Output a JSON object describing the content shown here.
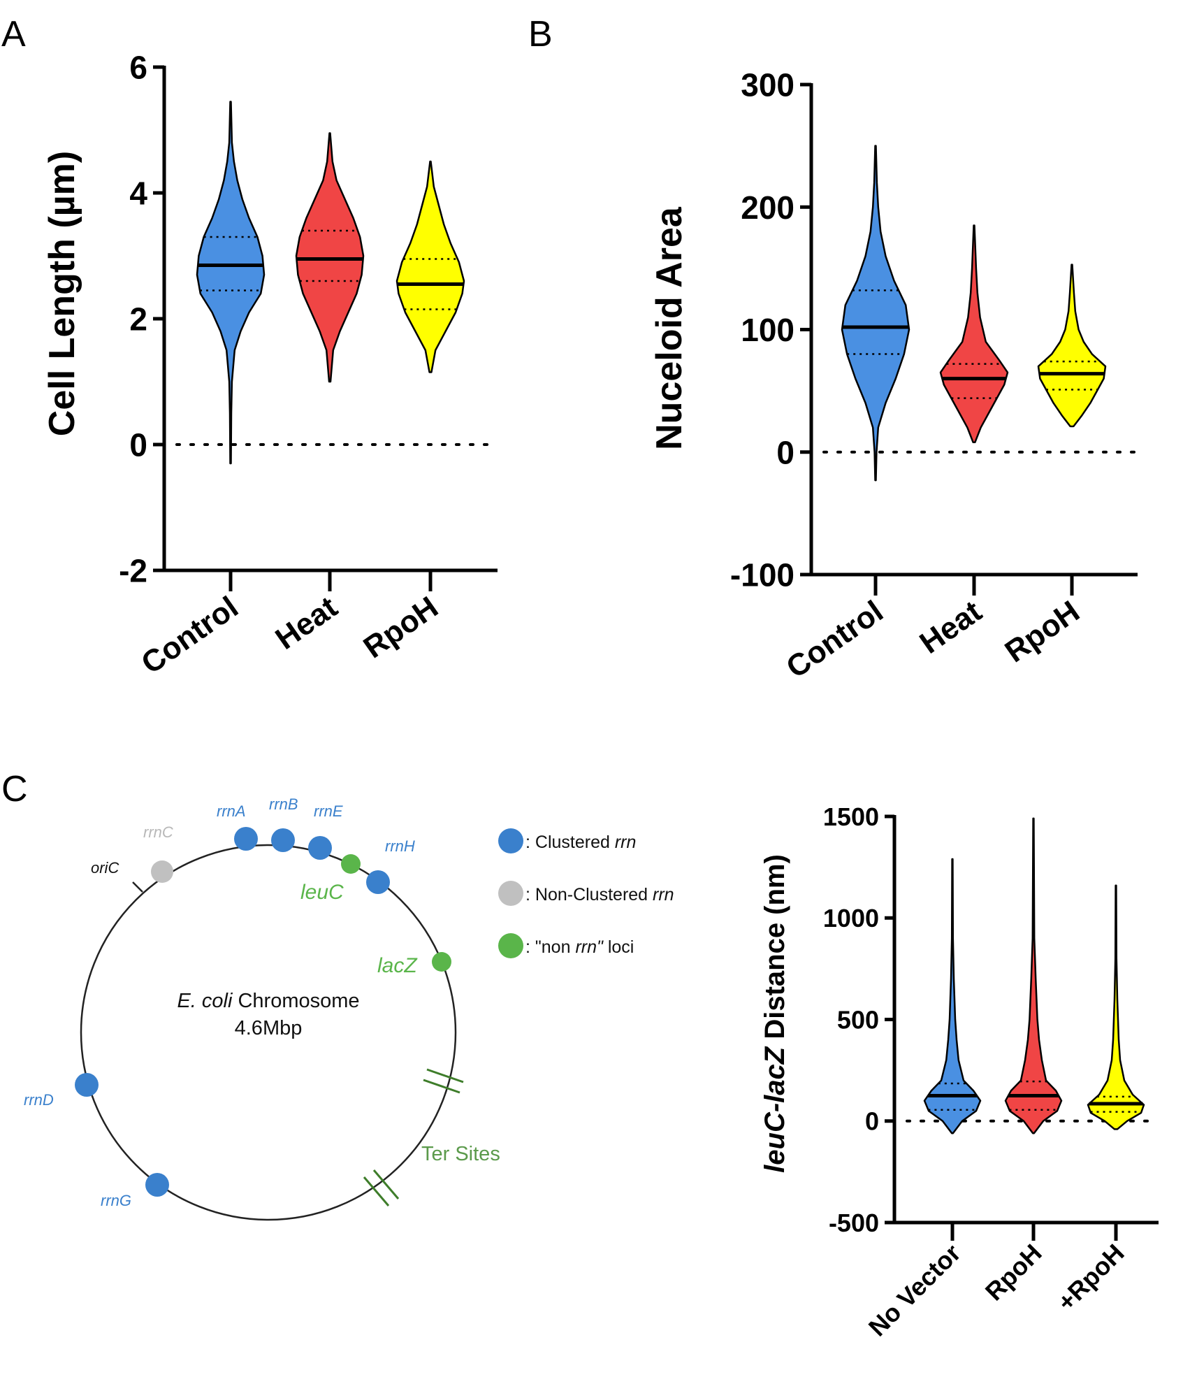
{
  "panels": {
    "a": "A",
    "b": "B",
    "c": "C"
  },
  "chart_data": [
    {
      "id": "panel-a",
      "type": "violin",
      "title": "",
      "ylabel": "Cell  Length (µm)",
      "xlabel": "",
      "ylim": [
        -2,
        6
      ],
      "yticks": [
        -2,
        0,
        2,
        4,
        6
      ],
      "reference_line": 0,
      "categories": [
        "Control",
        "Heat",
        "RpoH"
      ],
      "colors": [
        "#4a90e2",
        "#f04545",
        "#ffff00"
      ],
      "series": [
        {
          "name": "Control",
          "median": 2.85,
          "q1": 2.45,
          "q3": 3.3,
          "min": -0.3,
          "max": 5.45,
          "profile": [
            [
              -0.3,
              0.01
            ],
            [
              0.5,
              0.02
            ],
            [
              1.0,
              0.04
            ],
            [
              1.5,
              0.12
            ],
            [
              1.8,
              0.3
            ],
            [
              2.1,
              0.55
            ],
            [
              2.4,
              0.9
            ],
            [
              2.7,
              1.0
            ],
            [
              3.0,
              0.95
            ],
            [
              3.3,
              0.8
            ],
            [
              3.6,
              0.55
            ],
            [
              3.9,
              0.35
            ],
            [
              4.2,
              0.2
            ],
            [
              4.5,
              0.1
            ],
            [
              4.8,
              0.04
            ],
            [
              5.45,
              0.01
            ]
          ]
        },
        {
          "name": "Heat",
          "median": 2.95,
          "q1": 2.6,
          "q3": 3.4,
          "min": 1.0,
          "max": 4.95,
          "profile": [
            [
              1.0,
              0.02
            ],
            [
              1.5,
              0.1
            ],
            [
              1.8,
              0.3
            ],
            [
              2.1,
              0.55
            ],
            [
              2.4,
              0.8
            ],
            [
              2.7,
              0.95
            ],
            [
              3.0,
              1.0
            ],
            [
              3.3,
              0.9
            ],
            [
              3.6,
              0.7
            ],
            [
              3.9,
              0.45
            ],
            [
              4.2,
              0.2
            ],
            [
              4.5,
              0.08
            ],
            [
              4.95,
              0.01
            ]
          ]
        },
        {
          "name": "RpoH",
          "median": 2.55,
          "q1": 2.15,
          "q3": 2.95,
          "min": 1.15,
          "max": 4.5,
          "profile": [
            [
              1.15,
              0.03
            ],
            [
              1.5,
              0.15
            ],
            [
              1.8,
              0.45
            ],
            [
              2.1,
              0.75
            ],
            [
              2.4,
              0.95
            ],
            [
              2.6,
              1.0
            ],
            [
              2.9,
              0.85
            ],
            [
              3.2,
              0.6
            ],
            [
              3.5,
              0.4
            ],
            [
              3.8,
              0.25
            ],
            [
              4.1,
              0.1
            ],
            [
              4.5,
              0.01
            ]
          ]
        }
      ]
    },
    {
      "id": "panel-b",
      "type": "violin",
      "title": "",
      "ylabel": "Nuceloid Area",
      "xlabel": "",
      "ylim": [
        -100,
        300
      ],
      "yticks": [
        -100,
        0,
        100,
        200,
        300
      ],
      "reference_line": 0,
      "categories": [
        "Control",
        "Heat",
        "RpoH"
      ],
      "colors": [
        "#4a90e2",
        "#f04545",
        "#ffff00"
      ],
      "series": [
        {
          "name": "Control",
          "median": 102,
          "q1": 80,
          "q3": 132,
          "min": -23,
          "max": 250,
          "profile": [
            [
              -23,
              0.01
            ],
            [
              0,
              0.03
            ],
            [
              20,
              0.08
            ],
            [
              40,
              0.3
            ],
            [
              60,
              0.6
            ],
            [
              80,
              0.85
            ],
            [
              100,
              1.0
            ],
            [
              120,
              0.9
            ],
            [
              140,
              0.55
            ],
            [
              160,
              0.3
            ],
            [
              180,
              0.15
            ],
            [
              200,
              0.08
            ],
            [
              220,
              0.04
            ],
            [
              250,
              0.01
            ]
          ]
        },
        {
          "name": "Heat",
          "median": 60,
          "q1": 44,
          "q3": 72,
          "min": 8,
          "max": 185,
          "profile": [
            [
              8,
              0.03
            ],
            [
              20,
              0.2
            ],
            [
              35,
              0.5
            ],
            [
              45,
              0.7
            ],
            [
              55,
              0.9
            ],
            [
              65,
              1.0
            ],
            [
              75,
              0.75
            ],
            [
              90,
              0.35
            ],
            [
              110,
              0.18
            ],
            [
              130,
              0.1
            ],
            [
              150,
              0.06
            ],
            [
              185,
              0.01
            ]
          ]
        },
        {
          "name": "RpoH",
          "median": 64,
          "q1": 51,
          "q3": 74,
          "min": 21,
          "max": 153,
          "profile": [
            [
              21,
              0.05
            ],
            [
              30,
              0.3
            ],
            [
              40,
              0.55
            ],
            [
              50,
              0.75
            ],
            [
              60,
              0.95
            ],
            [
              70,
              1.0
            ],
            [
              80,
              0.6
            ],
            [
              90,
              0.35
            ],
            [
              100,
              0.2
            ],
            [
              115,
              0.1
            ],
            [
              130,
              0.06
            ],
            [
              153,
              0.01
            ]
          ]
        }
      ]
    },
    {
      "id": "panel-c-plot",
      "type": "violin",
      "title": "",
      "ylabel_italic": "leuC-lacZ",
      "ylabel_rest": " Distance (nm)",
      "xlabel": "",
      "ylim": [
        -500,
        1500
      ],
      "yticks": [
        -500,
        0,
        500,
        1000,
        1500
      ],
      "reference_line": 0,
      "categories": [
        "No Vector",
        "RpoH",
        "+RpoH"
      ],
      "colors": [
        "#4a90e2",
        "#f04545",
        "#ffff00"
      ],
      "series": [
        {
          "name": "No Vector",
          "median": 125,
          "q1": 55,
          "q3": 185,
          "min": -60,
          "max": 1290,
          "profile": [
            [
              -60,
              0.02
            ],
            [
              0,
              0.35
            ],
            [
              50,
              0.85
            ],
            [
              100,
              1.0
            ],
            [
              150,
              0.75
            ],
            [
              200,
              0.4
            ],
            [
              300,
              0.22
            ],
            [
              400,
              0.15
            ],
            [
              500,
              0.1
            ],
            [
              700,
              0.05
            ],
            [
              900,
              0.02
            ],
            [
              1290,
              0.01
            ]
          ]
        },
        {
          "name": "RpoH",
          "median": 125,
          "q1": 55,
          "q3": 195,
          "min": -60,
          "max": 1490,
          "profile": [
            [
              -60,
              0.02
            ],
            [
              0,
              0.35
            ],
            [
              50,
              0.85
            ],
            [
              100,
              1.0
            ],
            [
              150,
              0.8
            ],
            [
              200,
              0.45
            ],
            [
              300,
              0.3
            ],
            [
              400,
              0.2
            ],
            [
              500,
              0.14
            ],
            [
              700,
              0.08
            ],
            [
              900,
              0.03
            ],
            [
              1490,
              0.01
            ]
          ]
        },
        {
          "name": "+RpoH",
          "median": 85,
          "q1": 45,
          "q3": 120,
          "min": -40,
          "max": 1160,
          "profile": [
            [
              -40,
              0.05
            ],
            [
              0,
              0.4
            ],
            [
              40,
              0.9
            ],
            [
              80,
              1.0
            ],
            [
              130,
              0.6
            ],
            [
              200,
              0.3
            ],
            [
              300,
              0.15
            ],
            [
              400,
              0.1
            ],
            [
              600,
              0.05
            ],
            [
              800,
              0.02
            ],
            [
              1160,
              0.01
            ]
          ]
        }
      ]
    }
  ],
  "diagram": {
    "center_title_italic": "E. coli",
    "center_title_rest": " Chromosome",
    "center_size": "4.6Mbp",
    "origin_label": "oriC",
    "loci": [
      {
        "label": "rrnC",
        "group": "non-clustered"
      },
      {
        "label": "rrnA",
        "group": "clustered"
      },
      {
        "label": "rrnB",
        "group": "clustered"
      },
      {
        "label": "rrnE",
        "group": "clustered"
      },
      {
        "label": "leuC",
        "group": "non-rrn"
      },
      {
        "label": "rrnH",
        "group": "clustered"
      },
      {
        "label": "lacZ",
        "group": "non-rrn"
      },
      {
        "label": "rrnD",
        "group": "clustered"
      },
      {
        "label": "rrnG",
        "group": "clustered"
      }
    ],
    "ter_label": "Ter Sites",
    "legend": [
      {
        "prefix": ": Clustered ",
        "italic": "rrn",
        "suffix": "",
        "color": "#3a80cc"
      },
      {
        "prefix": ": Non-Clustered ",
        "italic": "rrn",
        "suffix": "",
        "color": "#c0c0c0"
      },
      {
        "prefix": ": \"non ",
        "italic": "rrn\"",
        "suffix": " loci",
        "color": "#5ab54a"
      }
    ],
    "colors": {
      "clustered": "#3a80cc",
      "non-clustered": "#c0c0c0",
      "non-rrn": "#5ab54a",
      "ter": "#3e7d2a",
      "clustered_label": "#3a80cc",
      "non_clustered_label": "#b8b8b8",
      "non_rrn_label": "#5ab54a",
      "ter_label": "#5b9a4b"
    }
  }
}
